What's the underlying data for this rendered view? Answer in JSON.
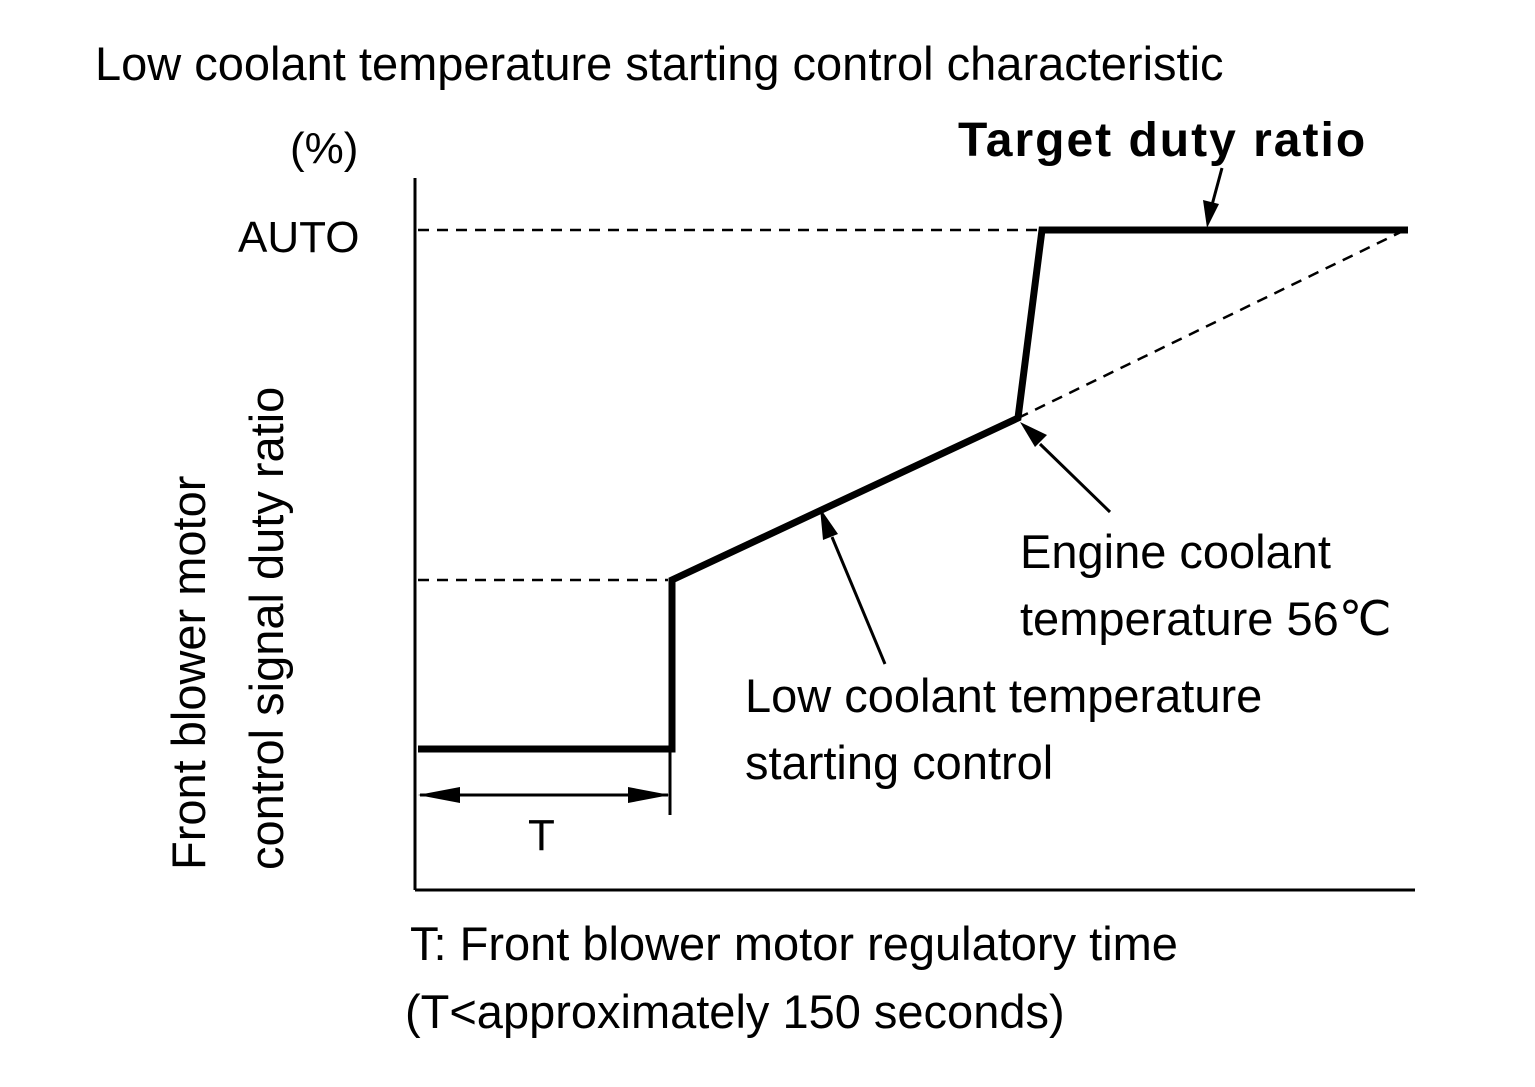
{
  "title": "Low coolant temperature starting control characteristic",
  "y_unit": "(%)",
  "y_tick_auto": "AUTO",
  "y_axis_label": {
    "line1": "Front blower motor",
    "line2": "control signal duty ratio"
  },
  "interval_label": "T",
  "annotations": {
    "target_duty_ratio": "Target duty ratio",
    "engine_coolant": {
      "line1": "Engine coolant",
      "line2": "temperature 56℃"
    },
    "low_coolant_control": {
      "line1": "Low coolant temperature",
      "line2": "starting control"
    }
  },
  "footnote": {
    "line1": "T: Front blower motor regulatory time",
    "line2": "(T<approximately 150 seconds)"
  },
  "colors": {
    "ink": "#000000",
    "background": "#ffffff"
  }
}
